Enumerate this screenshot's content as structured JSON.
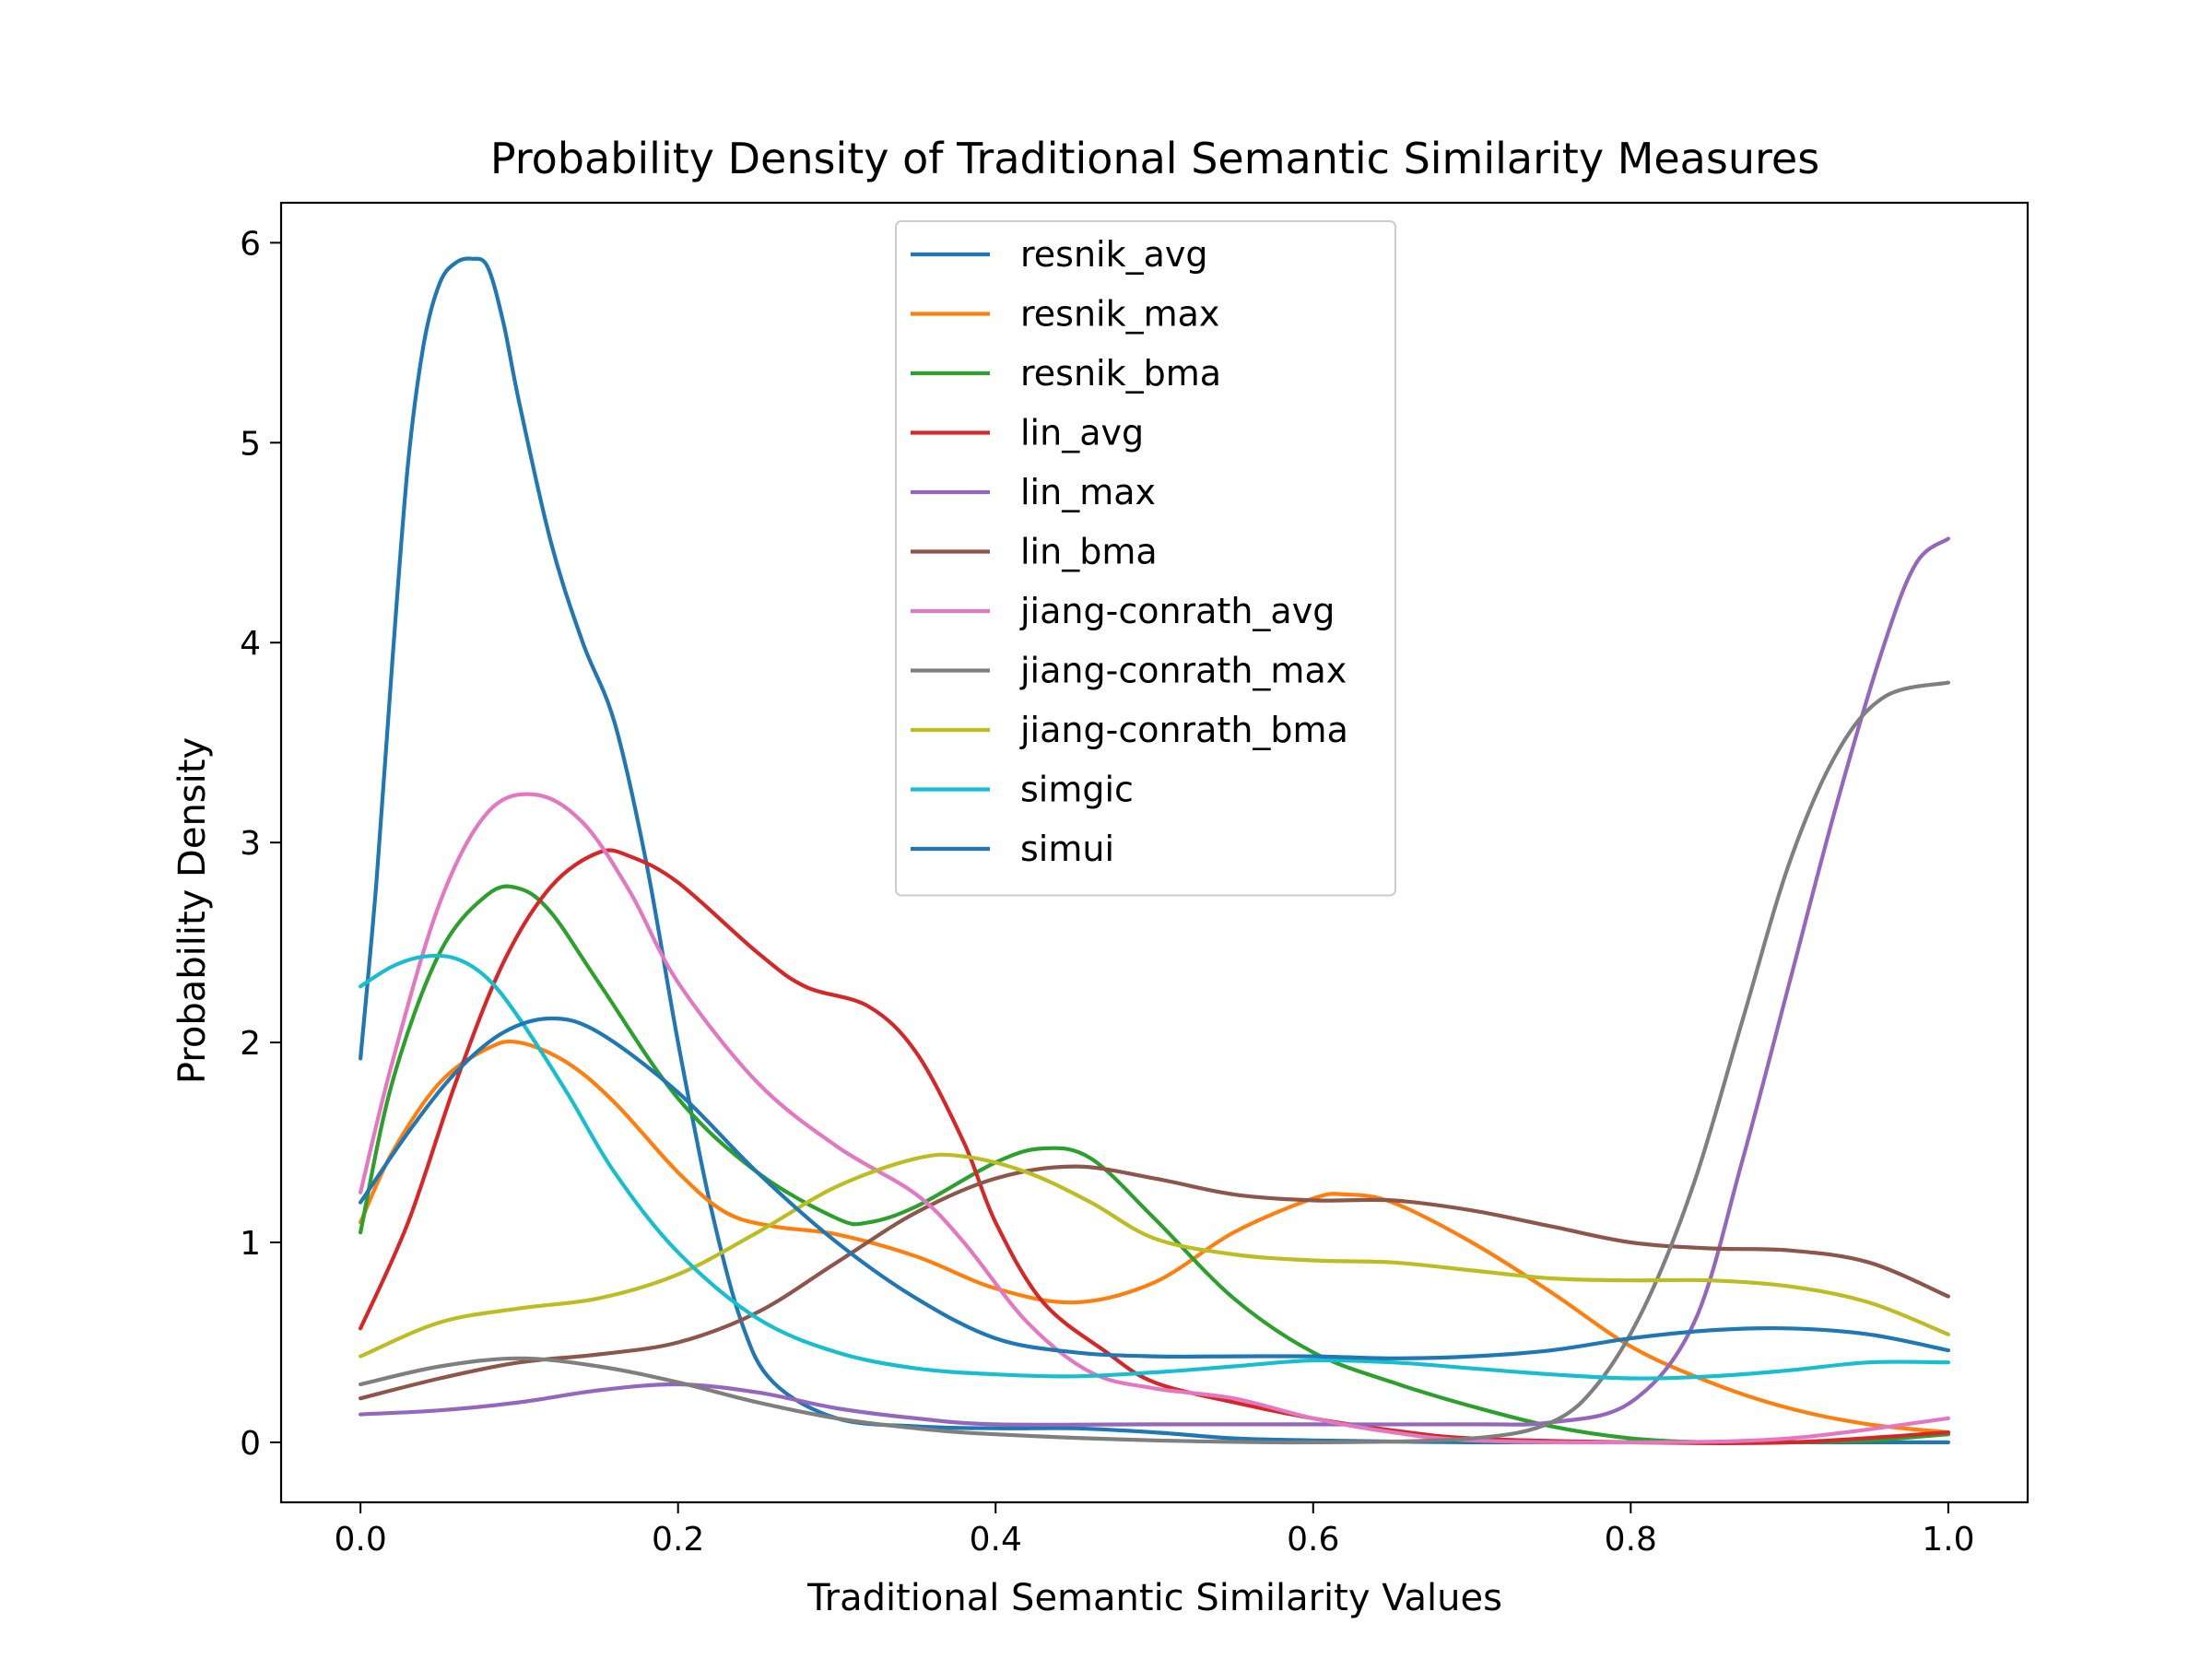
{
  "chart_data": {
    "type": "line",
    "title": "Probability Density of Traditional Semantic Similarity Measures",
    "xlabel": "Traditional Semantic Similarity Values",
    "ylabel": "Probability Density",
    "xlim": [
      -0.05,
      1.05
    ],
    "ylim": [
      -0.3,
      6.2
    ],
    "xticks": [
      0.0,
      0.2,
      0.4,
      0.6,
      0.8,
      1.0
    ],
    "xtick_labels": [
      "0.0",
      "0.2",
      "0.4",
      "0.6",
      "0.8",
      "1.0"
    ],
    "yticks": [
      0,
      1,
      2,
      3,
      4,
      5,
      6
    ],
    "ytick_labels": [
      "0",
      "1",
      "2",
      "3",
      "4",
      "5",
      "6"
    ],
    "grid": false,
    "legend_position": "top-center",
    "series": [
      {
        "name": "resnik_avg",
        "color": "#1f77b4",
        "points": [
          [
            0.0,
            1.92
          ],
          [
            0.01,
            2.8
          ],
          [
            0.02,
            3.9
          ],
          [
            0.03,
            4.9
          ],
          [
            0.04,
            5.5
          ],
          [
            0.05,
            5.8
          ],
          [
            0.06,
            5.9
          ],
          [
            0.07,
            5.92
          ],
          [
            0.08,
            5.88
          ],
          [
            0.09,
            5.6
          ],
          [
            0.1,
            5.2
          ],
          [
            0.12,
            4.5
          ],
          [
            0.14,
            4.0
          ],
          [
            0.16,
            3.6
          ],
          [
            0.18,
            2.9
          ],
          [
            0.2,
            2.0
          ],
          [
            0.22,
            1.2
          ],
          [
            0.24,
            0.6
          ],
          [
            0.26,
            0.3
          ],
          [
            0.3,
            0.12
          ],
          [
            0.35,
            0.08
          ],
          [
            0.4,
            0.07
          ],
          [
            0.45,
            0.07
          ],
          [
            0.5,
            0.05
          ],
          [
            0.55,
            0.02
          ],
          [
            0.6,
            0.01
          ],
          [
            0.7,
            0.0
          ],
          [
            0.8,
            0.0
          ],
          [
            0.9,
            0.0
          ],
          [
            1.0,
            0.0
          ]
        ]
      },
      {
        "name": "resnik_max",
        "color": "#ff7f0e",
        "points": [
          [
            0.0,
            1.1
          ],
          [
            0.02,
            1.45
          ],
          [
            0.05,
            1.8
          ],
          [
            0.08,
            1.97
          ],
          [
            0.1,
            2.0
          ],
          [
            0.13,
            1.9
          ],
          [
            0.16,
            1.7
          ],
          [
            0.2,
            1.35
          ],
          [
            0.23,
            1.15
          ],
          [
            0.26,
            1.08
          ],
          [
            0.3,
            1.04
          ],
          [
            0.35,
            0.93
          ],
          [
            0.4,
            0.77
          ],
          [
            0.45,
            0.7
          ],
          [
            0.5,
            0.8
          ],
          [
            0.55,
            1.05
          ],
          [
            0.6,
            1.22
          ],
          [
            0.62,
            1.24
          ],
          [
            0.65,
            1.2
          ],
          [
            0.7,
            1.0
          ],
          [
            0.75,
            0.75
          ],
          [
            0.8,
            0.48
          ],
          [
            0.85,
            0.3
          ],
          [
            0.9,
            0.17
          ],
          [
            0.95,
            0.09
          ],
          [
            1.0,
            0.05
          ]
        ]
      },
      {
        "name": "resnik_bma",
        "color": "#2ca02c",
        "points": [
          [
            0.0,
            1.05
          ],
          [
            0.02,
            1.8
          ],
          [
            0.05,
            2.45
          ],
          [
            0.08,
            2.74
          ],
          [
            0.1,
            2.77
          ],
          [
            0.12,
            2.65
          ],
          [
            0.15,
            2.3
          ],
          [
            0.2,
            1.72
          ],
          [
            0.25,
            1.35
          ],
          [
            0.3,
            1.12
          ],
          [
            0.32,
            1.1
          ],
          [
            0.35,
            1.18
          ],
          [
            0.4,
            1.4
          ],
          [
            0.43,
            1.47
          ],
          [
            0.46,
            1.42
          ],
          [
            0.5,
            1.12
          ],
          [
            0.55,
            0.72
          ],
          [
            0.6,
            0.45
          ],
          [
            0.65,
            0.3
          ],
          [
            0.7,
            0.18
          ],
          [
            0.75,
            0.08
          ],
          [
            0.8,
            0.02
          ],
          [
            0.85,
            0.0
          ],
          [
            0.9,
            0.0
          ],
          [
            0.95,
            0.01
          ],
          [
            1.0,
            0.04
          ]
        ]
      },
      {
        "name": "lin_avg",
        "color": "#d62728",
        "points": [
          [
            0.0,
            0.57
          ],
          [
            0.03,
            1.1
          ],
          [
            0.06,
            1.8
          ],
          [
            0.09,
            2.4
          ],
          [
            0.12,
            2.78
          ],
          [
            0.15,
            2.95
          ],
          [
            0.17,
            2.93
          ],
          [
            0.2,
            2.8
          ],
          [
            0.25,
            2.45
          ],
          [
            0.28,
            2.28
          ],
          [
            0.32,
            2.18
          ],
          [
            0.35,
            1.95
          ],
          [
            0.38,
            1.5
          ],
          [
            0.4,
            1.1
          ],
          [
            0.43,
            0.7
          ],
          [
            0.47,
            0.45
          ],
          [
            0.5,
            0.3
          ],
          [
            0.55,
            0.2
          ],
          [
            0.6,
            0.12
          ],
          [
            0.65,
            0.06
          ],
          [
            0.7,
            0.02
          ],
          [
            0.8,
            0.0
          ],
          [
            0.9,
            0.0
          ],
          [
            1.0,
            0.05
          ]
        ]
      },
      {
        "name": "lin_max",
        "color": "#9467bd",
        "points": [
          [
            0.0,
            0.14
          ],
          [
            0.05,
            0.16
          ],
          [
            0.1,
            0.2
          ],
          [
            0.15,
            0.26
          ],
          [
            0.2,
            0.29
          ],
          [
            0.25,
            0.25
          ],
          [
            0.3,
            0.17
          ],
          [
            0.35,
            0.12
          ],
          [
            0.4,
            0.09
          ],
          [
            0.5,
            0.09
          ],
          [
            0.6,
            0.09
          ],
          [
            0.7,
            0.09
          ],
          [
            0.75,
            0.1
          ],
          [
            0.8,
            0.2
          ],
          [
            0.84,
            0.6
          ],
          [
            0.87,
            1.4
          ],
          [
            0.9,
            2.3
          ],
          [
            0.93,
            3.2
          ],
          [
            0.96,
            4.0
          ],
          [
            0.98,
            4.4
          ],
          [
            1.0,
            4.52
          ]
        ]
      },
      {
        "name": "lin_bma",
        "color": "#8c564b",
        "points": [
          [
            0.0,
            0.22
          ],
          [
            0.05,
            0.32
          ],
          [
            0.1,
            0.4
          ],
          [
            0.15,
            0.44
          ],
          [
            0.2,
            0.5
          ],
          [
            0.25,
            0.65
          ],
          [
            0.3,
            0.9
          ],
          [
            0.35,
            1.15
          ],
          [
            0.4,
            1.32
          ],
          [
            0.45,
            1.38
          ],
          [
            0.5,
            1.32
          ],
          [
            0.55,
            1.24
          ],
          [
            0.6,
            1.21
          ],
          [
            0.65,
            1.21
          ],
          [
            0.7,
            1.16
          ],
          [
            0.75,
            1.08
          ],
          [
            0.8,
            1.0
          ],
          [
            0.85,
            0.97
          ],
          [
            0.9,
            0.96
          ],
          [
            0.95,
            0.9
          ],
          [
            1.0,
            0.73
          ]
        ]
      },
      {
        "name": "jiang-conrath_avg",
        "color": "#e377c2",
        "points": [
          [
            0.0,
            1.25
          ],
          [
            0.02,
            1.9
          ],
          [
            0.05,
            2.7
          ],
          [
            0.08,
            3.15
          ],
          [
            0.11,
            3.24
          ],
          [
            0.14,
            3.1
          ],
          [
            0.17,
            2.75
          ],
          [
            0.2,
            2.3
          ],
          [
            0.25,
            1.8
          ],
          [
            0.3,
            1.48
          ],
          [
            0.35,
            1.24
          ],
          [
            0.38,
            1.0
          ],
          [
            0.42,
            0.6
          ],
          [
            0.46,
            0.35
          ],
          [
            0.5,
            0.27
          ],
          [
            0.55,
            0.22
          ],
          [
            0.6,
            0.12
          ],
          [
            0.65,
            0.05
          ],
          [
            0.7,
            0.01
          ],
          [
            0.8,
            0.0
          ],
          [
            0.9,
            0.02
          ],
          [
            1.0,
            0.12
          ]
        ]
      },
      {
        "name": "jiang-conrath_max",
        "color": "#7f7f7f",
        "points": [
          [
            0.0,
            0.29
          ],
          [
            0.05,
            0.38
          ],
          [
            0.1,
            0.42
          ],
          [
            0.15,
            0.38
          ],
          [
            0.2,
            0.3
          ],
          [
            0.25,
            0.2
          ],
          [
            0.3,
            0.12
          ],
          [
            0.35,
            0.07
          ],
          [
            0.4,
            0.04
          ],
          [
            0.5,
            0.01
          ],
          [
            0.6,
            0.0
          ],
          [
            0.7,
            0.02
          ],
          [
            0.75,
            0.1
          ],
          [
            0.78,
            0.3
          ],
          [
            0.81,
            0.7
          ],
          [
            0.84,
            1.3
          ],
          [
            0.87,
            2.1
          ],
          [
            0.9,
            2.9
          ],
          [
            0.93,
            3.45
          ],
          [
            0.96,
            3.73
          ],
          [
            1.0,
            3.8
          ]
        ]
      },
      {
        "name": "jiang-conrath_bma",
        "color": "#bcbd22",
        "points": [
          [
            0.0,
            0.43
          ],
          [
            0.05,
            0.6
          ],
          [
            0.1,
            0.67
          ],
          [
            0.15,
            0.72
          ],
          [
            0.2,
            0.84
          ],
          [
            0.25,
            1.05
          ],
          [
            0.3,
            1.28
          ],
          [
            0.35,
            1.42
          ],
          [
            0.38,
            1.43
          ],
          [
            0.42,
            1.35
          ],
          [
            0.46,
            1.2
          ],
          [
            0.5,
            1.02
          ],
          [
            0.55,
            0.94
          ],
          [
            0.6,
            0.91
          ],
          [
            0.65,
            0.9
          ],
          [
            0.7,
            0.86
          ],
          [
            0.75,
            0.82
          ],
          [
            0.8,
            0.81
          ],
          [
            0.85,
            0.81
          ],
          [
            0.9,
            0.78
          ],
          [
            0.95,
            0.7
          ],
          [
            1.0,
            0.54
          ]
        ]
      },
      {
        "name": "simgic",
        "color": "#17becf",
        "points": [
          [
            0.0,
            2.28
          ],
          [
            0.02,
            2.38
          ],
          [
            0.04,
            2.43
          ],
          [
            0.06,
            2.42
          ],
          [
            0.08,
            2.32
          ],
          [
            0.1,
            2.12
          ],
          [
            0.13,
            1.75
          ],
          [
            0.16,
            1.35
          ],
          [
            0.2,
            0.95
          ],
          [
            0.25,
            0.62
          ],
          [
            0.3,
            0.45
          ],
          [
            0.35,
            0.37
          ],
          [
            0.4,
            0.34
          ],
          [
            0.45,
            0.33
          ],
          [
            0.5,
            0.35
          ],
          [
            0.55,
            0.38
          ],
          [
            0.6,
            0.41
          ],
          [
            0.65,
            0.4
          ],
          [
            0.7,
            0.37
          ],
          [
            0.75,
            0.34
          ],
          [
            0.8,
            0.32
          ],
          [
            0.85,
            0.33
          ],
          [
            0.9,
            0.36
          ],
          [
            0.95,
            0.4
          ],
          [
            1.0,
            0.4
          ]
        ]
      },
      {
        "name": "simui",
        "color": "#1f77b4",
        "points": [
          [
            0.0,
            1.2
          ],
          [
            0.03,
            1.55
          ],
          [
            0.06,
            1.85
          ],
          [
            0.09,
            2.05
          ],
          [
            0.12,
            2.12
          ],
          [
            0.15,
            2.05
          ],
          [
            0.2,
            1.75
          ],
          [
            0.25,
            1.35
          ],
          [
            0.3,
            1.0
          ],
          [
            0.35,
            0.72
          ],
          [
            0.4,
            0.52
          ],
          [
            0.45,
            0.45
          ],
          [
            0.5,
            0.43
          ],
          [
            0.55,
            0.43
          ],
          [
            0.6,
            0.43
          ],
          [
            0.65,
            0.42
          ],
          [
            0.7,
            0.43
          ],
          [
            0.75,
            0.46
          ],
          [
            0.8,
            0.52
          ],
          [
            0.85,
            0.56
          ],
          [
            0.9,
            0.57
          ],
          [
            0.95,
            0.54
          ],
          [
            1.0,
            0.46
          ]
        ]
      }
    ]
  }
}
